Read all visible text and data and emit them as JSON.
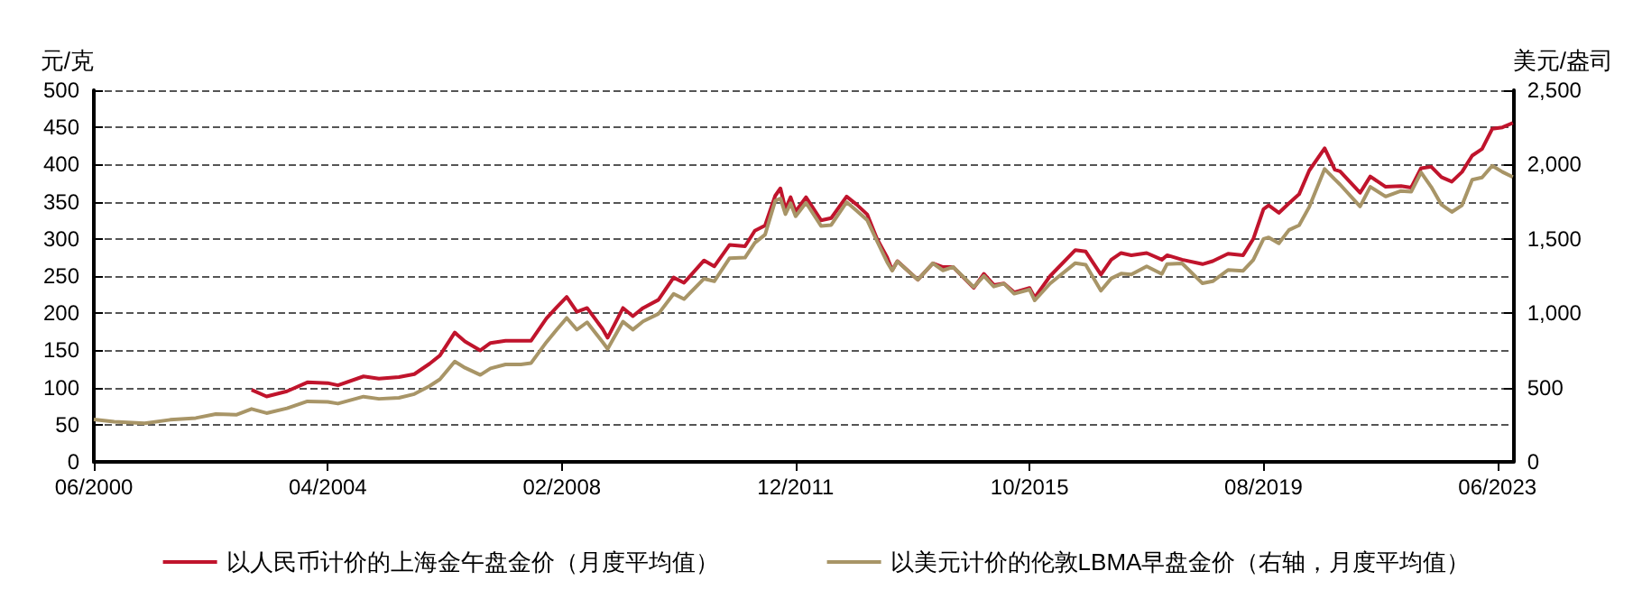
{
  "chart_data": {
    "type": "line",
    "ylabel": "元/克",
    "y2label": "美元/盎司",
    "xlim": [
      "2000-06",
      "2023-09"
    ],
    "xticks": [
      {
        "value": "2000-06",
        "label": "06/2000"
      },
      {
        "value": "2004-04",
        "label": "04/2004"
      },
      {
        "value": "2008-02",
        "label": "02/2008"
      },
      {
        "value": "2011-12",
        "label": "12/2011"
      },
      {
        "value": "2015-10",
        "label": "10/2015"
      },
      {
        "value": "2019-08",
        "label": "08/2019"
      },
      {
        "value": "2023-06",
        "label": "06/2023"
      }
    ],
    "ylim": [
      0,
      500
    ],
    "yticks": [
      0,
      50,
      100,
      150,
      200,
      250,
      300,
      350,
      400,
      450,
      500
    ],
    "y2lim": [
      0,
      2500
    ],
    "y2ticks": [
      0,
      500,
      {
        "value": 1000,
        "label": "1,000"
      },
      {
        "value": 1500,
        "label": "1,500"
      },
      {
        "value": 2000,
        "label": "2,000"
      },
      {
        "value": 2500,
        "label": "2,500"
      }
    ],
    "grid": "y",
    "legend": "bottom",
    "marker": "none",
    "line_style": "solid",
    "series": [
      {
        "name": "以人民币计价的上海金午盘金价（月度平均值）",
        "color": "#c0142c",
        "x": [
          "2003-01",
          "2003-04",
          "2003-08",
          "2003-12",
          "2004-04",
          "2004-06",
          "2004-11",
          "2005-02",
          "2005-06",
          "2005-09",
          "2005-12",
          "2006-02",
          "2006-05",
          "2006-07",
          "2006-10",
          "2006-12",
          "2007-03",
          "2007-06",
          "2007-08",
          "2007-11",
          "2008-01",
          "2008-03",
          "2008-05",
          "2008-07",
          "2008-10",
          "2008-11",
          "2009-02",
          "2009-04",
          "2009-06",
          "2009-09",
          "2009-12",
          "2010-02",
          "2010-06",
          "2010-08",
          "2010-11",
          "2011-02",
          "2011-04",
          "2011-06",
          "2011-08",
          "2011-09",
          "2011-10",
          "2011-11",
          "2011-12",
          "2012-02",
          "2012-05",
          "2012-07",
          "2012-10",
          "2012-12",
          "2013-02",
          "2013-04",
          "2013-06",
          "2013-07",
          "2013-08",
          "2013-12",
          "2014-03",
          "2014-05",
          "2014-07",
          "2014-11",
          "2015-01",
          "2015-03",
          "2015-05",
          "2015-07",
          "2015-10",
          "2015-11",
          "2016-02",
          "2016-07",
          "2016-09",
          "2016-12",
          "2017-02",
          "2017-04",
          "2017-06",
          "2017-09",
          "2017-12",
          "2018-01",
          "2018-04",
          "2018-08",
          "2018-10",
          "2019-01",
          "2019-04",
          "2019-06",
          "2019-08",
          "2019-09",
          "2019-11",
          "2020-01",
          "2020-03",
          "2020-05",
          "2020-08",
          "2020-10",
          "2020-11",
          "2021-03",
          "2021-05",
          "2021-08",
          "2021-11",
          "2022-01",
          "2022-03",
          "2022-05",
          "2022-07",
          "2022-09",
          "2022-11",
          "2023-01",
          "2023-03",
          "2023-05",
          "2023-07",
          "2023-09"
        ],
        "values": [
          97,
          88,
          95,
          107,
          106,
          103,
          115,
          112,
          114,
          118,
          132,
          143,
          174,
          162,
          150,
          160,
          163,
          163,
          163,
          193,
          208,
          222,
          202,
          207,
          179,
          167,
          207,
          196,
          207,
          218,
          248,
          241,
          271,
          263,
          292,
          290,
          311,
          318,
          358,
          368,
          340,
          356,
          337,
          356,
          325,
          328,
          357,
          346,
          333,
          300,
          275,
          258,
          270,
          245,
          267,
          262,
          262,
          234,
          253,
          238,
          240,
          228,
          234,
          221,
          250,
          285,
          283,
          252,
          272,
          281,
          278,
          281,
          272,
          278,
          272,
          266,
          270,
          280,
          278,
          300,
          340,
          345,
          335,
          348,
          360,
          392,
          422,
          393,
          391,
          362,
          384,
          370,
          371,
          369,
          395,
          397,
          383,
          377,
          390,
          412,
          421,
          448,
          450,
          456
        ]
      },
      {
        "name": "以美元计价的伦敦LBMA早盘金价（右轴，月度平均值）",
        "color": "#a89567",
        "axis": "y2",
        "x": [
          "2000-06",
          "2000-10",
          "2001-04",
          "2001-09",
          "2002-02",
          "2002-06",
          "2002-10",
          "2003-01",
          "2003-04",
          "2003-08",
          "2003-12",
          "2004-04",
          "2004-06",
          "2004-11",
          "2005-02",
          "2005-06",
          "2005-09",
          "2005-12",
          "2006-02",
          "2006-05",
          "2006-07",
          "2006-10",
          "2006-12",
          "2007-03",
          "2007-06",
          "2007-08",
          "2007-11",
          "2008-01",
          "2008-03",
          "2008-05",
          "2008-07",
          "2008-10",
          "2008-11",
          "2009-02",
          "2009-04",
          "2009-06",
          "2009-09",
          "2009-12",
          "2010-02",
          "2010-06",
          "2010-08",
          "2010-11",
          "2011-02",
          "2011-04",
          "2011-06",
          "2011-08",
          "2011-09",
          "2011-10",
          "2011-11",
          "2011-12",
          "2012-02",
          "2012-05",
          "2012-07",
          "2012-10",
          "2012-12",
          "2013-02",
          "2013-04",
          "2013-06",
          "2013-07",
          "2013-08",
          "2013-12",
          "2014-03",
          "2014-05",
          "2014-07",
          "2014-11",
          "2015-01",
          "2015-03",
          "2015-05",
          "2015-07",
          "2015-10",
          "2015-11",
          "2016-02",
          "2016-07",
          "2016-09",
          "2016-12",
          "2017-02",
          "2017-04",
          "2017-06",
          "2017-09",
          "2017-12",
          "2018-01",
          "2018-04",
          "2018-08",
          "2018-10",
          "2019-01",
          "2019-04",
          "2019-06",
          "2019-08",
          "2019-09",
          "2019-11",
          "2020-01",
          "2020-03",
          "2020-05",
          "2020-08",
          "2020-10",
          "2020-11",
          "2021-03",
          "2021-05",
          "2021-08",
          "2021-11",
          "2022-01",
          "2022-03",
          "2022-05",
          "2022-07",
          "2022-09",
          "2022-11",
          "2023-01",
          "2023-03",
          "2023-05",
          "2023-07",
          "2023-09"
        ],
        "values": [
          285,
          270,
          260,
          283,
          295,
          322,
          317,
          356,
          328,
          360,
          407,
          403,
          392,
          439,
          424,
          431,
          456,
          510,
          555,
          675,
          633,
          585,
          629,
          655,
          655,
          665,
          806,
          889,
          968,
          889,
          939,
          807,
          760,
          943,
          890,
          945,
          996,
          1130,
          1095,
          1232,
          1215,
          1370,
          1374,
          1474,
          1528,
          1756,
          1772,
          1666,
          1739,
          1652,
          1743,
          1587,
          1593,
          1747,
          1688,
          1627,
          1485,
          1343,
          1286,
          1348,
          1225,
          1336,
          1288,
          1311,
          1176,
          1251,
          1179,
          1199,
          1131,
          1159,
          1086,
          1200,
          1337,
          1326,
          1151,
          1234,
          1266,
          1260,
          1315,
          1264,
          1331,
          1335,
          1201,
          1215,
          1291,
          1285,
          1359,
          1500,
          1510,
          1470,
          1560,
          1591,
          1715,
          1970,
          1900,
          1866,
          1718,
          1850,
          1785,
          1822,
          1817,
          1947,
          1849,
          1730,
          1681,
          1726,
          1898,
          1913,
          1992,
          1950,
          1916
        ]
      }
    ]
  }
}
